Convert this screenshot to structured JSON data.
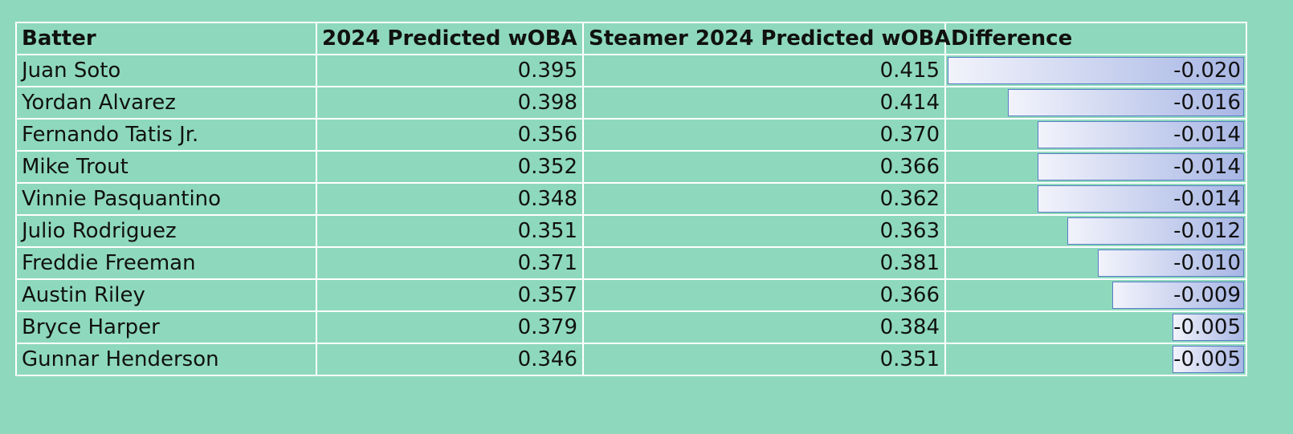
{
  "table": {
    "header": [
      "Batter",
      "2024 Predicted wOBA",
      "Steamer 2024 Predicted wOBA",
      "Difference"
    ],
    "rows": [
      [
        "Juan Soto",
        "0.395",
        "0.415",
        {
          "value": -0.02,
          "label": "-0.020"
        }
      ],
      [
        "Yordan Alvarez",
        "0.398",
        "0.414",
        {
          "value": -0.016,
          "label": "-0.016"
        }
      ],
      [
        "Fernando Tatis Jr.",
        "0.356",
        "0.370",
        {
          "value": -0.014,
          "label": "-0.014"
        }
      ],
      [
        "Mike Trout",
        "0.352",
        "0.366",
        {
          "value": -0.014,
          "label": "-0.014"
        }
      ],
      [
        "Vinnie Pasquantino",
        "0.348",
        "0.362",
        {
          "value": -0.014,
          "label": "-0.014"
        }
      ],
      [
        "Julio Rodriguez",
        "0.351",
        "0.363",
        {
          "value": -0.012,
          "label": "-0.012"
        }
      ],
      [
        "Freddie Freeman",
        "0.371",
        "0.381",
        {
          "value": -0.01,
          "label": "-0.010"
        }
      ],
      [
        "Austin Riley",
        "0.357",
        "0.366",
        {
          "value": -0.009,
          "label": "-0.009"
        }
      ],
      [
        "Bryce Harper",
        "0.379",
        "0.384",
        {
          "value": -0.005,
          "label": "-0.005"
        }
      ],
      [
        "Gunnar Henderson",
        "0.346",
        "0.351",
        {
          "value": -0.005,
          "label": "-0.005"
        }
      ]
    ]
  }
}
